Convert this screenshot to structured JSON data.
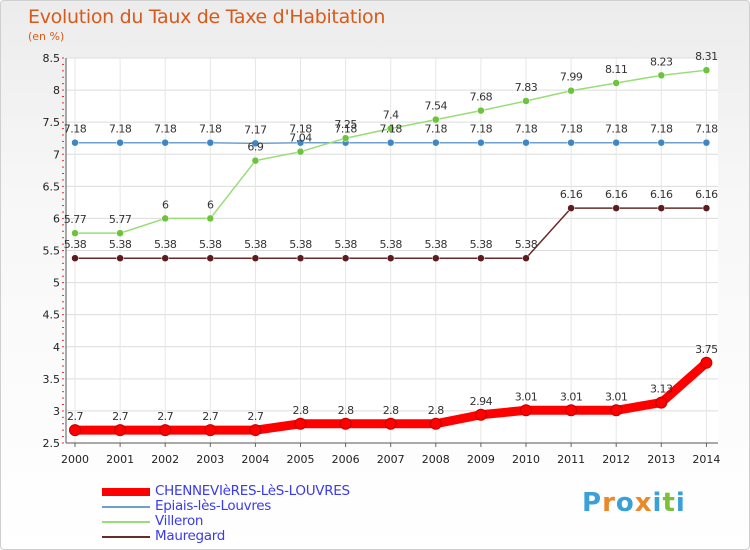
{
  "title": "Evolution du Taux de Taxe d'Habitation",
  "subtitle": "(en %)",
  "logo": {
    "letters": [
      "P",
      "r",
      "o",
      "x",
      "i",
      "t",
      "i"
    ],
    "colors": [
      "#3aa0d8",
      "#e8892a",
      "#3aa0d8",
      "#e8892a",
      "#3aa0d8",
      "#7bbf3a",
      "#3aa0d8"
    ]
  },
  "chart_data": {
    "type": "line",
    "title": "Evolution du Taux de Taxe d'Habitation",
    "ylabel": "(en %)",
    "xlabel": "",
    "ylim": [
      2.5,
      8.5
    ],
    "yticks": [
      "2.5",
      "3",
      "3.5",
      "4",
      "4.5",
      "5",
      "5.5",
      "6",
      "6.5",
      "7",
      "7.5",
      "8",
      "8.5"
    ],
    "x": [
      "2000",
      "2001",
      "2002",
      "2003",
      "2004",
      "2005",
      "2006",
      "2007",
      "2008",
      "2009",
      "2010",
      "2011",
      "2012",
      "2013",
      "2014"
    ],
    "grid": true,
    "legend_position": "bottom-left",
    "series": [
      {
        "name": "CHENNEVIèRES-LèS-LOUVRES",
        "color": "#ff0000",
        "emphasis": true,
        "values": [
          2.7,
          2.7,
          2.7,
          2.7,
          2.7,
          2.8,
          2.8,
          2.8,
          2.8,
          2.94,
          3.01,
          3.01,
          3.01,
          3.13,
          3.75
        ],
        "labels": [
          "2.7",
          "2.7",
          "2.7",
          "2.7",
          "2.7",
          "2.8",
          "2.8",
          "2.8",
          "2.8",
          "2.94",
          "3.01",
          "3.01",
          "3.01",
          "3.13",
          "3.75"
        ]
      },
      {
        "name": "Epiais-lès-Louvres",
        "color": "#6f9fcf",
        "point_color": "#3f86c4",
        "values": [
          7.18,
          7.18,
          7.18,
          7.18,
          7.17,
          7.18,
          7.18,
          7.18,
          7.18,
          7.18,
          7.18,
          7.18,
          7.18,
          7.18,
          7.18
        ],
        "labels": [
          "7.18",
          "7.18",
          "7.18",
          "7.18",
          "7.17",
          "7.18",
          "7.18",
          "7.18",
          "7.18",
          "7.18",
          "7.18",
          "7.18",
          "7.18",
          "7.18",
          "7.18"
        ]
      },
      {
        "name": "Villeron",
        "color": "#99dd77",
        "point_color": "#6cc43c",
        "values": [
          5.77,
          5.77,
          6,
          6,
          6.9,
          7.04,
          7.25,
          7.4,
          7.54,
          7.68,
          7.83,
          7.99,
          8.11,
          8.23,
          8.31
        ],
        "labels": [
          "5.77",
          "5.77",
          "6",
          "6",
          "6.9",
          "7.04",
          "7.25",
          "7.4",
          "7.54",
          "7.68",
          "7.83",
          "7.99",
          "8.11",
          "8.23",
          "8.31"
        ]
      },
      {
        "name": "Mauregard",
        "color": "#6b2a2a",
        "point_color": "#5a1c1c",
        "values": [
          5.38,
          5.38,
          5.38,
          5.38,
          5.38,
          5.38,
          5.38,
          5.38,
          5.38,
          5.38,
          5.38,
          6.16,
          6.16,
          6.16,
          6.16
        ],
        "labels": [
          "5.38",
          "5.38",
          "5.38",
          "5.38",
          "5.38",
          "5.38",
          "5.38",
          "5.38",
          "5.38",
          "5.38",
          "5.38",
          "6.16",
          "6.16",
          "6.16",
          "6.16"
        ]
      }
    ]
  }
}
